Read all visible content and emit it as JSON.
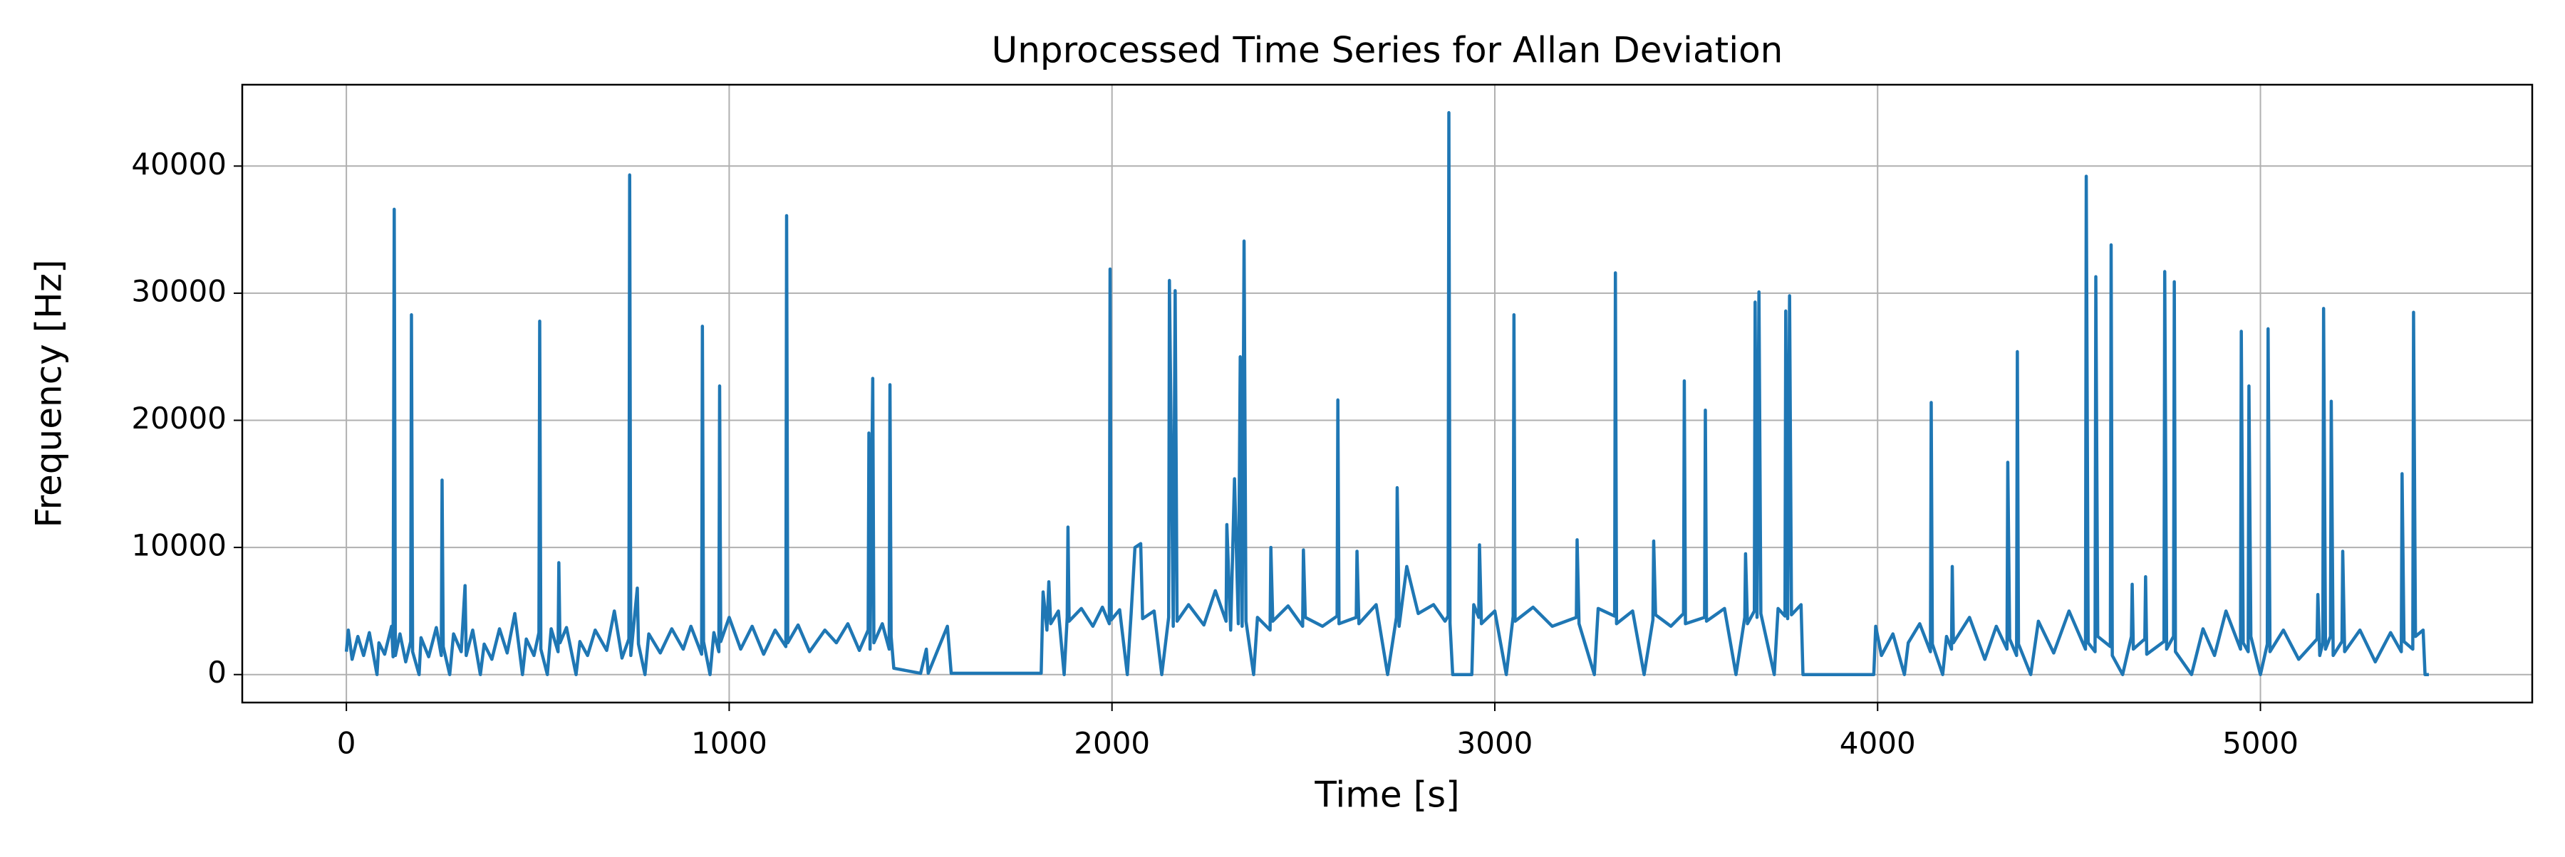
{
  "chart_data": {
    "type": "line",
    "title": "Unprocessed Time Series for Allan Deviation",
    "x_label": "Time [s]",
    "y_label": "Frequency [Hz]",
    "xlim": [
      -272,
      5710
    ],
    "ylim": [
      -2200,
      46400
    ],
    "xticks": [
      0,
      1000,
      2000,
      3000,
      4000,
      5000
    ],
    "yticks": [
      0,
      10000,
      20000,
      30000,
      40000
    ],
    "grid": true,
    "x": [
      0,
      5,
      15,
      30,
      45,
      60,
      80,
      85,
      100,
      118,
      122,
      125,
      128,
      140,
      155,
      168,
      170,
      173,
      190,
      195,
      215,
      235,
      248,
      250,
      253,
      270,
      280,
      300,
      310,
      313,
      330,
      350,
      360,
      380,
      400,
      420,
      440,
      460,
      470,
      490,
      503,
      505,
      508,
      525,
      535,
      553,
      555,
      558,
      575,
      600,
      610,
      630,
      650,
      680,
      700,
      720,
      738,
      740,
      743,
      760,
      763,
      780,
      790,
      820,
      850,
      880,
      900,
      928,
      930,
      933,
      950,
      960,
      973,
      975,
      978,
      1000,
      1030,
      1060,
      1090,
      1120,
      1148,
      1150,
      1153,
      1180,
      1210,
      1250,
      1280,
      1310,
      1340,
      1363,
      1365,
      1368,
      1375,
      1378,
      1400,
      1418,
      1420,
      1423,
      1430,
      1500,
      1515,
      1520,
      1570,
      1580,
      1700,
      1815,
      1820,
      1830,
      1835,
      1840,
      1860,
      1875,
      1883,
      1885,
      1888,
      1920,
      1950,
      1975,
      1993,
      1995,
      1998,
      2020,
      2040,
      2050,
      2060,
      2075,
      2080,
      2110,
      2130,
      2148,
      2150,
      2160,
      2165,
      2170,
      2200,
      2240,
      2270,
      2298,
      2300,
      2310,
      2320,
      2330,
      2335,
      2340,
      2345,
      2350,
      2370,
      2380,
      2413,
      2415,
      2420,
      2460,
      2498,
      2500,
      2505,
      2550,
      2588,
      2590,
      2593,
      2638,
      2640,
      2645,
      2690,
      2720,
      2743,
      2745,
      2750,
      2770,
      2800,
      2840,
      2870,
      2878,
      2880,
      2883,
      2890,
      2940,
      2945,
      2958,
      2960,
      2965,
      3000,
      3030,
      3048,
      3050,
      3053,
      3100,
      3150,
      3213,
      3215,
      3220,
      3260,
      3270,
      3313,
      3315,
      3318,
      3360,
      3390,
      3413,
      3415,
      3420,
      3460,
      3493,
      3495,
      3498,
      3548,
      3550,
      3553,
      3600,
      3630,
      3653,
      3655,
      3660,
      3678,
      3680,
      3685,
      3690,
      3695,
      3730,
      3740,
      3758,
      3760,
      3765,
      3770,
      3775,
      3800,
      3805,
      3990,
      3995,
      4010,
      4040,
      4070,
      4080,
      4110,
      4138,
      4140,
      4143,
      4170,
      4180,
      4193,
      4195,
      4198,
      4240,
      4280,
      4310,
      4338,
      4340,
      4345,
      4363,
      4365,
      4368,
      4400,
      4420,
      4460,
      4500,
      4543,
      4545,
      4550,
      4568,
      4570,
      4575,
      4608,
      4610,
      4613,
      4640,
      4663,
      4665,
      4668,
      4698,
      4700,
      4703,
      4748,
      4750,
      4755,
      4773,
      4775,
      4778,
      4820,
      4850,
      4880,
      4910,
      4948,
      4950,
      4955,
      4968,
      4970,
      4975,
      5000,
      5018,
      5020,
      5025,
      5060,
      5100,
      5148,
      5150,
      5155,
      5163,
      5165,
      5170,
      5183,
      5185,
      5190,
      5213,
      5215,
      5220,
      5260,
      5300,
      5340,
      5368,
      5370,
      5375,
      5398,
      5400,
      5405,
      5425,
      5430,
      5440
    ],
    "series": [
      {
        "color": "#1f77b4",
        "values": [
          1800,
          3500,
          1200,
          3000,
          1500,
          3300,
          0,
          2500,
          1600,
          3800,
          1400,
          36600,
          1500,
          3200,
          1000,
          2600,
          28300,
          1800,
          0,
          2900,
          1400,
          3700,
          1500,
          15300,
          2200,
          0,
          3200,
          1800,
          7000,
          1500,
          3500,
          0,
          2400,
          1200,
          3600,
          1700,
          4800,
          0,
          2800,
          1500,
          3300,
          27800,
          2000,
          0,
          3600,
          1800,
          8800,
          2500,
          3700,
          0,
          2600,
          1500,
          3500,
          1900,
          5000,
          1300,
          2800,
          39300,
          1500,
          6800,
          2400,
          0,
          3200,
          1700,
          3600,
          2000,
          3800,
          1600,
          27400,
          2600,
          0,
          3300,
          1800,
          22700,
          2600,
          4500,
          2000,
          3800,
          1600,
          3500,
          2200,
          36100,
          2500,
          3900,
          1800,
          3500,
          2500,
          4000,
          1900,
          3500,
          19000,
          2000,
          23300,
          2500,
          4000,
          2000,
          22800,
          3000,
          500,
          100,
          2000,
          100,
          3800,
          100,
          100,
          100,
          6500,
          3500,
          7300,
          4000,
          5000,
          0,
          4500,
          11600,
          4200,
          5200,
          3800,
          5300,
          4000,
          31900,
          4300,
          5100,
          0,
          4800,
          10000,
          10300,
          4400,
          5000,
          0,
          4500,
          31000,
          3800,
          30200,
          4200,
          5500,
          3900,
          6600,
          4200,
          11800,
          3500,
          15400,
          4000,
          25000,
          3800,
          34100,
          4200,
          0,
          4500,
          3500,
          10000,
          4200,
          5400,
          3800,
          9800,
          4500,
          3800,
          4600,
          21600,
          4000,
          4500,
          9700,
          4000,
          5500,
          0,
          4500,
          14700,
          3800,
          8500,
          4800,
          5500,
          4200,
          4600,
          44200,
          4000,
          0,
          0,
          5500,
          4500,
          10200,
          4000,
          5000,
          0,
          4600,
          28300,
          4200,
          5300,
          3800,
          4500,
          10600,
          4000,
          0,
          5200,
          4600,
          31600,
          4000,
          5000,
          0,
          4300,
          10500,
          4700,
          3800,
          4800,
          23100,
          4000,
          4500,
          20800,
          4200,
          5200,
          0,
          4500,
          9500,
          4000,
          5000,
          29300,
          4500,
          30100,
          4800,
          0,
          5200,
          4600,
          28600,
          4400,
          29800,
          4700,
          5500,
          0,
          0,
          3800,
          1500,
          3200,
          0,
          2500,
          4000,
          1800,
          21400,
          2400,
          0,
          3000,
          2000,
          8500,
          2500,
          4500,
          1200,
          3800,
          2000,
          16700,
          2800,
          1500,
          25400,
          2400,
          0,
          4200,
          1700,
          5000,
          2000,
          39200,
          2500,
          1800,
          31300,
          3000,
          2200,
          33800,
          1500,
          0,
          3000,
          7100,
          2000,
          2800,
          7700,
          1600,
          2600,
          31700,
          2000,
          3000,
          30900,
          1800,
          0,
          3600,
          1500,
          5000,
          2000,
          27000,
          2500,
          1800,
          22700,
          3000,
          0,
          2400,
          27200,
          1800,
          3500,
          1200,
          2800,
          6300,
          1500,
          2500,
          28800,
          2000,
          3000,
          21500,
          1500,
          2600,
          9700,
          1800,
          3500,
          1000,
          3300,
          1800,
          15800,
          2600,
          2000,
          28500,
          3000,
          3500,
          0,
          0
        ]
      }
    ]
  }
}
